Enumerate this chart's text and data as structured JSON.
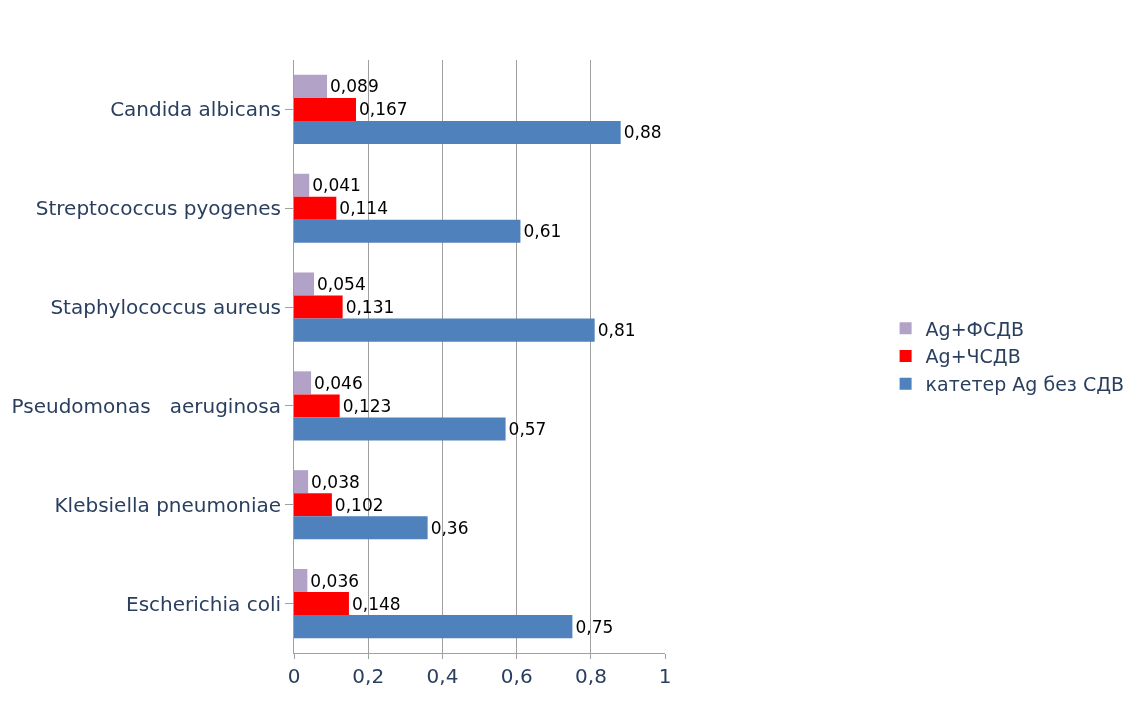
{
  "chart_data": {
    "type": "bar",
    "orientation": "horizontal",
    "categories": [
      "Candida albicans",
      "Streptococcus pyogenes",
      "Staphylococcus aureus",
      "Pseudomonas   aeruginosa",
      "Klebsiella pneumoniae",
      "Escherichia coli"
    ],
    "series": [
      {
        "name": "Ag+ФСДВ",
        "color": "#b3a2c7",
        "values": [
          0.089,
          0.041,
          0.054,
          0.046,
          0.038,
          0.036
        ],
        "value_labels": [
          "0,089",
          "0,041",
          "0,054",
          "0,046",
          "0,038",
          "0,036"
        ]
      },
      {
        "name": "Ag+ЧСДВ",
        "color": "#ff0000",
        "values": [
          0.167,
          0.114,
          0.131,
          0.123,
          0.102,
          0.148
        ],
        "value_labels": [
          "0,167",
          "0,114",
          "0,131",
          "0,123",
          "0,102",
          "0,148"
        ]
      },
      {
        "name": "катетер Ag без СДВ",
        "color": "#4f81bd",
        "values": [
          0.88,
          0.61,
          0.81,
          0.57,
          0.36,
          0.75
        ],
        "value_labels": [
          "0,88",
          "0,61",
          "0,81",
          "0,57",
          "0,36",
          "0,75"
        ]
      }
    ],
    "xlim": [
      0,
      1
    ],
    "xticks": [
      0,
      {
        "value": 0.2,
        "label": "0,2"
      },
      {
        "value": 0.4,
        "label": "0,4"
      },
      {
        "value": 0.6,
        "label": "0,6"
      },
      {
        "value": 0.8,
        "label": "0,8"
      },
      1
    ],
    "grid": "x",
    "legend": "right"
  }
}
